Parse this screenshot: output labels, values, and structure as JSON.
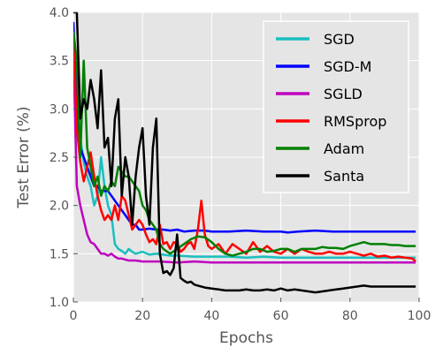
{
  "chart_data": {
    "type": "line",
    "title": "",
    "xlabel": "Epochs",
    "ylabel": "Test Error (%)",
    "xlim": [
      0,
      100
    ],
    "ylim": [
      1.0,
      4.0
    ],
    "xticks": [
      "0",
      "20",
      "40",
      "60",
      "80",
      "100"
    ],
    "yticks": [
      "1.0",
      "1.5",
      "2.0",
      "2.5",
      "3.0",
      "3.5",
      "4.0"
    ],
    "grid": true,
    "legend_position": "top-right",
    "series": [
      {
        "name": "SGD",
        "color": "#1ABFBF",
        "x": [
          0,
          1,
          2,
          3,
          4,
          5,
          6,
          7,
          8,
          9,
          10,
          11,
          12,
          13,
          14,
          15,
          16,
          17,
          18,
          19,
          20,
          22,
          24,
          26,
          28,
          30,
          35,
          40,
          45,
          50,
          55,
          60,
          65,
          70,
          75,
          80,
          85,
          90,
          95,
          99
        ],
        "y": [
          3.8,
          3.2,
          2.7,
          2.45,
          2.3,
          2.2,
          2.0,
          2.1,
          2.5,
          2.2,
          2.0,
          1.9,
          1.6,
          1.55,
          1.53,
          1.5,
          1.55,
          1.52,
          1.5,
          1.51,
          1.52,
          1.49,
          1.5,
          1.49,
          1.48,
          1.48,
          1.47,
          1.47,
          1.47,
          1.46,
          1.47,
          1.46,
          1.46,
          1.46,
          1.46,
          1.46,
          1.46,
          1.46,
          1.46,
          1.46
        ]
      },
      {
        "name": "SGD-M",
        "color": "#0000FF",
        "x": [
          0,
          1,
          2,
          3,
          4,
          5,
          6,
          7,
          8,
          9,
          10,
          11,
          12,
          13,
          14,
          15,
          16,
          17,
          18,
          19,
          20,
          22,
          24,
          26,
          28,
          30,
          32,
          35,
          38,
          40,
          45,
          50,
          55,
          60,
          62,
          65,
          70,
          75,
          80,
          85,
          90,
          95,
          99
        ],
        "y": [
          3.9,
          3.0,
          2.6,
          2.5,
          2.4,
          2.3,
          2.2,
          2.2,
          2.15,
          2.15,
          2.15,
          2.1,
          2.05,
          2.0,
          1.95,
          1.9,
          1.85,
          1.8,
          1.8,
          1.75,
          1.75,
          1.76,
          1.75,
          1.75,
          1.74,
          1.75,
          1.73,
          1.74,
          1.74,
          1.73,
          1.73,
          1.74,
          1.73,
          1.73,
          1.72,
          1.73,
          1.74,
          1.73,
          1.73,
          1.73,
          1.73,
          1.73,
          1.73
        ]
      },
      {
        "name": "SGLD",
        "color": "#BF00BF",
        "x": [
          0,
          1,
          2,
          3,
          4,
          5,
          6,
          7,
          8,
          9,
          10,
          11,
          12,
          13,
          14,
          15,
          16,
          18,
          20,
          22,
          25,
          30,
          35,
          40,
          45,
          50,
          55,
          60,
          65,
          70,
          75,
          80,
          85,
          90,
          95,
          99
        ],
        "y": [
          3.6,
          2.2,
          2.0,
          1.85,
          1.7,
          1.62,
          1.6,
          1.55,
          1.5,
          1.5,
          1.48,
          1.5,
          1.47,
          1.45,
          1.45,
          1.44,
          1.43,
          1.43,
          1.42,
          1.42,
          1.42,
          1.41,
          1.42,
          1.41,
          1.41,
          1.41,
          1.41,
          1.41,
          1.41,
          1.41,
          1.41,
          1.41,
          1.41,
          1.41,
          1.41,
          1.41
        ]
      },
      {
        "name": "RMSprop",
        "color": "#FF0000",
        "x": [
          0,
          1,
          2,
          3,
          4,
          5,
          6,
          7,
          8,
          9,
          10,
          11,
          12,
          13,
          14,
          15,
          16,
          17,
          18,
          19,
          20,
          21,
          22,
          23,
          24,
          25,
          26,
          27,
          28,
          29,
          30,
          31,
          32,
          33,
          34,
          35,
          36,
          37,
          38,
          39,
          40,
          42,
          44,
          46,
          48,
          50,
          52,
          54,
          56,
          58,
          60,
          62,
          64,
          66,
          68,
          70,
          72,
          74,
          76,
          78,
          80,
          82,
          84,
          86,
          88,
          90,
          92,
          94,
          96,
          98,
          99
        ],
        "y": [
          3.8,
          2.8,
          2.45,
          2.25,
          2.4,
          2.55,
          2.3,
          2.1,
          1.95,
          1.85,
          1.9,
          1.85,
          2.0,
          1.85,
          2.1,
          2.05,
          1.9,
          1.75,
          1.8,
          1.85,
          1.8,
          1.7,
          1.62,
          1.65,
          1.6,
          1.8,
          1.6,
          1.62,
          1.55,
          1.62,
          1.6,
          1.52,
          1.55,
          1.6,
          1.62,
          1.55,
          1.75,
          2.05,
          1.7,
          1.58,
          1.55,
          1.6,
          1.5,
          1.6,
          1.55,
          1.5,
          1.62,
          1.52,
          1.58,
          1.52,
          1.5,
          1.55,
          1.5,
          1.55,
          1.52,
          1.5,
          1.5,
          1.52,
          1.5,
          1.5,
          1.52,
          1.5,
          1.48,
          1.5,
          1.47,
          1.48,
          1.46,
          1.47,
          1.46,
          1.45,
          1.42
        ]
      },
      {
        "name": "Adam",
        "color": "#008000",
        "x": [
          0,
          1,
          2,
          3,
          4,
          5,
          6,
          7,
          8,
          9,
          10,
          11,
          12,
          13,
          14,
          15,
          16,
          17,
          18,
          19,
          20,
          21,
          22,
          23,
          24,
          25,
          26,
          28,
          30,
          32,
          34,
          36,
          38,
          40,
          42,
          44,
          46,
          48,
          50,
          52,
          54,
          56,
          58,
          60,
          62,
          64,
          66,
          68,
          70,
          72,
          74,
          76,
          78,
          80,
          82,
          84,
          86,
          88,
          90,
          92,
          94,
          96,
          98,
          99
        ],
        "y": [
          3.8,
          3.5,
          2.5,
          3.5,
          2.6,
          2.4,
          2.2,
          2.3,
          2.1,
          2.2,
          2.15,
          2.25,
          2.2,
          2.4,
          2.35,
          2.3,
          2.3,
          2.25,
          2.2,
          2.15,
          2.0,
          1.95,
          1.85,
          1.8,
          1.75,
          1.6,
          1.55,
          1.5,
          1.55,
          1.6,
          1.65,
          1.68,
          1.67,
          1.62,
          1.55,
          1.5,
          1.48,
          1.5,
          1.52,
          1.55,
          1.55,
          1.52,
          1.53,
          1.55,
          1.55,
          1.52,
          1.55,
          1.55,
          1.55,
          1.57,
          1.56,
          1.56,
          1.55,
          1.58,
          1.6,
          1.62,
          1.6,
          1.6,
          1.6,
          1.59,
          1.59,
          1.58,
          1.58,
          1.58
        ]
      },
      {
        "name": "Santa",
        "color": "#000000",
        "x": [
          0,
          1,
          2,
          3,
          4,
          5,
          6,
          7,
          8,
          9,
          10,
          11,
          12,
          13,
          14,
          15,
          16,
          17,
          18,
          19,
          20,
          21,
          22,
          23,
          24,
          25,
          26,
          27,
          28,
          29,
          30,
          31,
          32,
          33,
          34,
          35,
          36,
          38,
          40,
          42,
          44,
          46,
          48,
          50,
          52,
          54,
          56,
          58,
          60,
          62,
          64,
          66,
          68,
          70,
          72,
          74,
          76,
          78,
          80,
          82,
          84,
          86,
          88,
          90,
          92,
          94,
          96,
          98,
          99
        ],
        "y": [
          4.0,
          4.0,
          2.9,
          3.1,
          3.0,
          3.3,
          3.1,
          2.8,
          3.4,
          2.6,
          2.7,
          2.2,
          2.9,
          3.1,
          2.1,
          2.5,
          2.3,
          1.8,
          2.3,
          2.6,
          2.8,
          2.1,
          1.8,
          2.6,
          2.9,
          1.5,
          1.3,
          1.32,
          1.28,
          1.35,
          1.7,
          1.25,
          1.22,
          1.2,
          1.21,
          1.18,
          1.17,
          1.15,
          1.14,
          1.13,
          1.12,
          1.12,
          1.12,
          1.13,
          1.12,
          1.12,
          1.13,
          1.12,
          1.14,
          1.12,
          1.13,
          1.12,
          1.11,
          1.1,
          1.11,
          1.12,
          1.13,
          1.14,
          1.15,
          1.16,
          1.17,
          1.16,
          1.16,
          1.16,
          1.16,
          1.16,
          1.16,
          1.16,
          1.16
        ]
      }
    ]
  }
}
